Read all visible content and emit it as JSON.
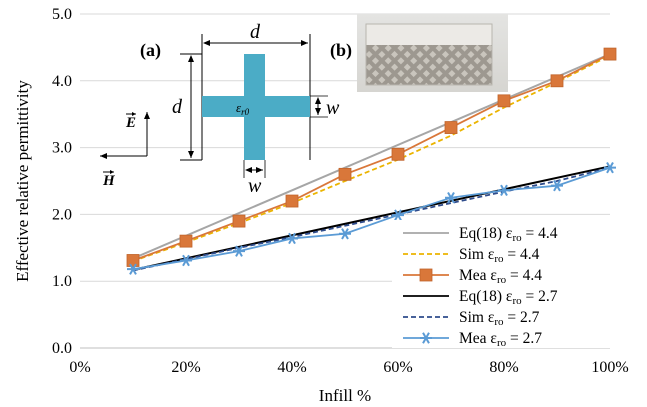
{
  "chart_data": {
    "type": "line",
    "xlabel": "Infill %",
    "ylabel": "Effective relative permittivity",
    "xlim": [
      0,
      100
    ],
    "ylim": [
      0.0,
      5.0
    ],
    "x_ticks": [
      0,
      20,
      40,
      60,
      80,
      100
    ],
    "x_tick_labels": [
      "0%",
      "20%",
      "40%",
      "60%",
      "80%",
      "100%"
    ],
    "y_ticks": [
      0,
      1,
      2,
      3,
      4,
      5
    ],
    "y_tick_labels": [
      "0.0",
      "1.0",
      "2.0",
      "3.0",
      "4.0",
      "5.0"
    ],
    "grid": "horizontal",
    "legend_position": "bottom-right",
    "series": [
      {
        "name": "Eq(18) εro = 4.4",
        "legend_label": "Eq(18)",
        "legend_value": "4.4",
        "color": "#a6a6a6",
        "style": "solid",
        "marker": "none",
        "x": [
          10,
          100
        ],
        "y": [
          1.34,
          4.4
        ]
      },
      {
        "name": "Sim εro = 4.4",
        "legend_label": "Sim",
        "legend_value": "4.4",
        "color": "#ebb400",
        "style": "dashed",
        "marker": "none",
        "x": [
          10,
          20,
          30,
          40,
          50,
          60,
          70,
          80,
          90,
          100
        ],
        "y": [
          1.3,
          1.58,
          1.87,
          2.17,
          2.5,
          2.82,
          3.18,
          3.6,
          3.98,
          4.38
        ]
      },
      {
        "name": "Mea εro = 4.4",
        "legend_label": "Mea",
        "legend_value": "4.4",
        "color": "#d9773a",
        "style": "solid",
        "marker": "square",
        "x": [
          10,
          20,
          30,
          40,
          50,
          60,
          70,
          80,
          90,
          100
        ],
        "y": [
          1.31,
          1.6,
          1.9,
          2.2,
          2.6,
          2.9,
          3.3,
          3.7,
          4.0,
          4.4
        ]
      },
      {
        "name": "Eq(18) εro = 2.7",
        "legend_label": "Eq(18)",
        "legend_value": "2.7",
        "color": "#000000",
        "style": "solid",
        "marker": "none",
        "x": [
          10,
          100
        ],
        "y": [
          1.17,
          2.72
        ]
      },
      {
        "name": "Sim εro = 2.7",
        "legend_label": "Sim",
        "legend_value": "2.7",
        "color": "#2f4c8c",
        "style": "dashed",
        "marker": "none",
        "x": [
          10,
          20,
          30,
          40,
          50,
          60,
          70,
          80,
          90,
          100
        ],
        "y": [
          1.16,
          1.33,
          1.5,
          1.66,
          1.83,
          2.0,
          2.17,
          2.34,
          2.5,
          2.7
        ]
      },
      {
        "name": "Mea εro = 2.7",
        "legend_label": "Mea",
        "legend_value": "2.7",
        "color": "#5b9bd5",
        "style": "solid",
        "marker": "star",
        "x": [
          10,
          20,
          30,
          40,
          50,
          60,
          70,
          80,
          90,
          100
        ],
        "y": [
          1.18,
          1.31,
          1.45,
          1.64,
          1.71,
          1.99,
          2.25,
          2.36,
          2.43,
          2.7
        ]
      }
    ],
    "inset": {
      "label_a": "(a)",
      "label_b": "(b)",
      "dim_d": "d",
      "dim_w": "w",
      "eps_symbol": "ε",
      "eps_subscript": "r0",
      "vector_e": "E",
      "vector_h": "H",
      "cross_color": "#4bacc6"
    }
  }
}
